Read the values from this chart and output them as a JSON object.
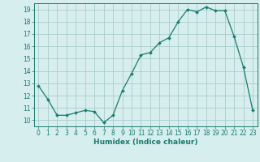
{
  "x": [
    0,
    1,
    2,
    3,
    4,
    5,
    6,
    7,
    8,
    9,
    10,
    11,
    12,
    13,
    14,
    15,
    16,
    17,
    18,
    19,
    20,
    21,
    22,
    23
  ],
  "y": [
    12.8,
    11.7,
    10.4,
    10.4,
    10.6,
    10.8,
    10.7,
    9.8,
    10.4,
    12.4,
    13.8,
    15.3,
    15.5,
    16.3,
    16.7,
    18.0,
    19.0,
    18.8,
    19.2,
    18.9,
    18.9,
    16.8,
    14.3,
    10.8
  ],
  "line_color": "#1a7a6e",
  "marker": "D",
  "marker_size": 2.0,
  "bg_color": "#d6eeee",
  "grid_color": "#aacccc",
  "xlabel": "Humidex (Indice chaleur)",
  "xlim": [
    -0.5,
    23.5
  ],
  "ylim": [
    9.5,
    19.5
  ],
  "yticks": [
    10,
    11,
    12,
    13,
    14,
    15,
    16,
    17,
    18,
    19
  ],
  "xticks": [
    0,
    1,
    2,
    3,
    4,
    5,
    6,
    7,
    8,
    9,
    10,
    11,
    12,
    13,
    14,
    15,
    16,
    17,
    18,
    19,
    20,
    21,
    22,
    23
  ],
  "xtick_labels": [
    "0",
    "1",
    "2",
    "3",
    "4",
    "5",
    "6",
    "7",
    "8",
    "9",
    "10",
    "11",
    "12",
    "13",
    "14",
    "15",
    "16",
    "17",
    "18",
    "19",
    "20",
    "21",
    "22",
    "23"
  ],
  "ytick_labels": [
    "10",
    "11",
    "12",
    "13",
    "14",
    "15",
    "16",
    "17",
    "18",
    "19"
  ],
  "tick_color": "#1a7a6e",
  "label_fontsize": 6.5,
  "tick_fontsize": 5.5,
  "linewidth": 0.9
}
